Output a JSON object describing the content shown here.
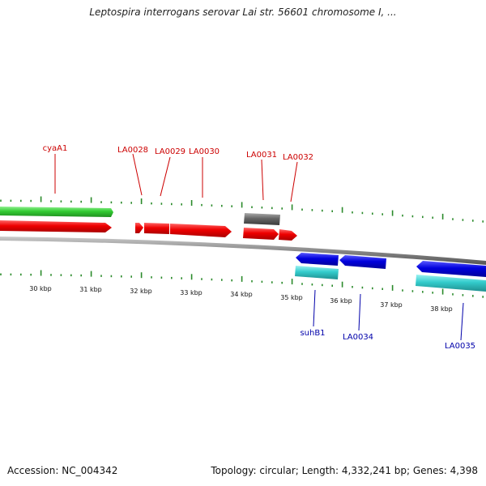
{
  "title": "Leptospira interrogans serovar Lai str. 56601 chromosome I, ...",
  "footer": {
    "accession": "Accession: NC_004342",
    "topology": "Topology: circular; Length: 4,332,241 bp; Genes: 4,398"
  },
  "colors": {
    "cds_forward": "#ee0000",
    "cds_reverse": "#0000dd",
    "gene_forward": "#33cc33",
    "gene_reverse": "#33cccc",
    "other_feature": "#666666",
    "backbone": "#888888",
    "ticks": "#2a8a2a",
    "label_forward": "#cc0000",
    "label_reverse": "#0000aa"
  },
  "scale_labels": [
    "30 kbp",
    "31 kbp",
    "32 kbp",
    "33 kbp",
    "34 kbp",
    "35 kbp",
    "36 kbp",
    "37 kbp",
    "38 kbp"
  ],
  "gene_labels_forward": [
    "cyaA1",
    "LA0028",
    "LA0029",
    "LA0030",
    "LA0031",
    "LA0032"
  ],
  "gene_labels_reverse": [
    "suhB1",
    "LA0034",
    "LA0035"
  ]
}
